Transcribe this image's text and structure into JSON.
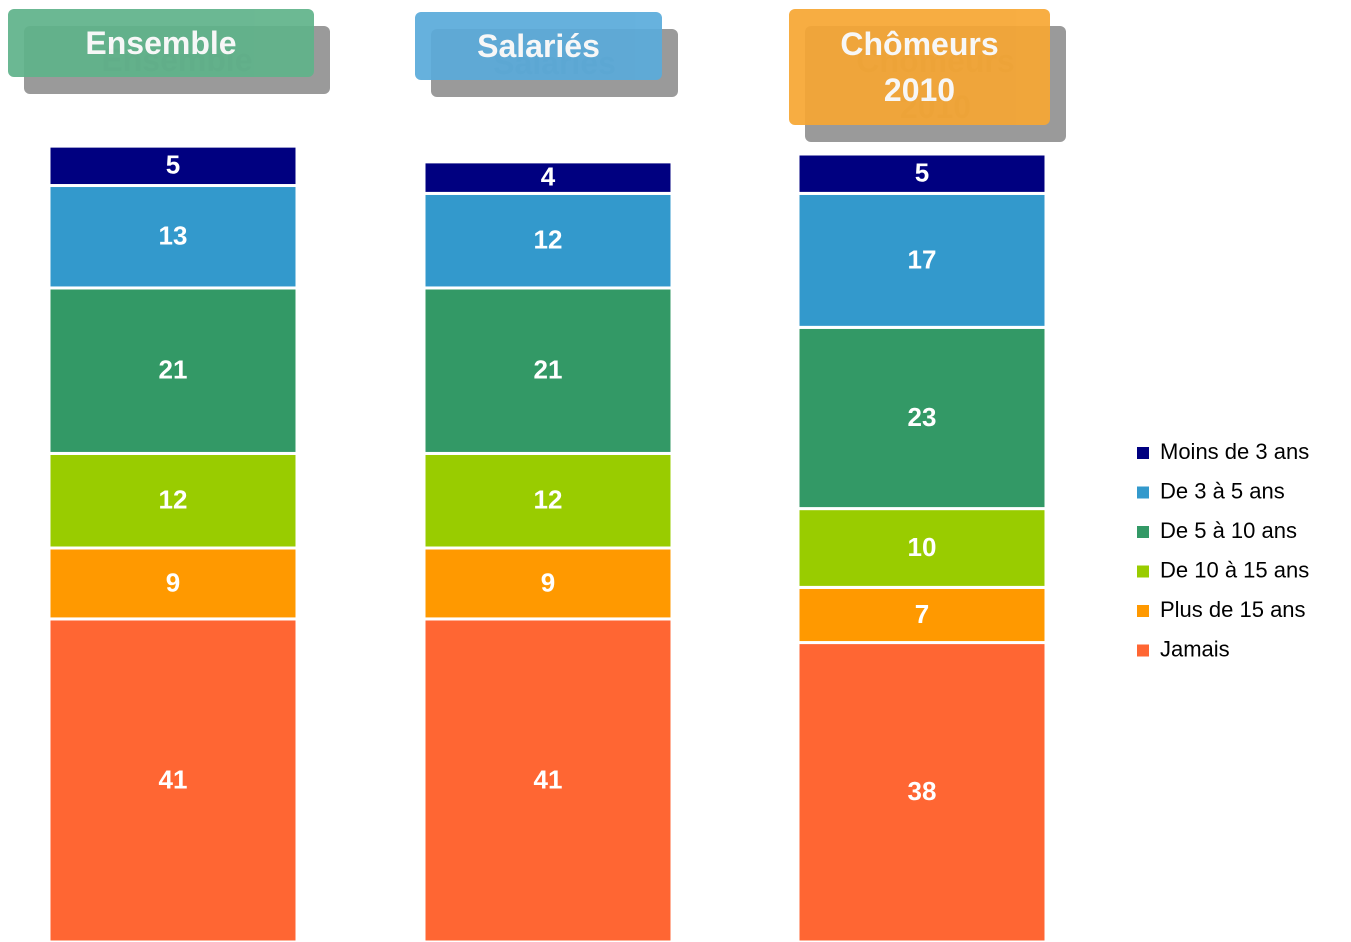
{
  "chart_data": {
    "type": "bar",
    "stacked": true,
    "categories": [
      "Ensemble",
      "Salariés",
      "Chômeurs 2010"
    ],
    "category_colors": [
      "#5fb38a",
      "#5aabdb",
      "#f7a733"
    ],
    "series": [
      {
        "name": "Moins de 3 ans",
        "color": "#000080",
        "values": [
          5,
          4,
          5
        ]
      },
      {
        "name": "De 3 à 5 ans",
        "color": "#3399cc",
        "values": [
          13,
          12,
          17
        ]
      },
      {
        "name": "De 5 à 10 ans",
        "color": "#339966",
        "values": [
          21,
          21,
          23
        ]
      },
      {
        "name": "De 10 à 15 ans",
        "color": "#99cc00",
        "values": [
          12,
          12,
          10
        ]
      },
      {
        "name": "Plus de 15 ans",
        "color": "#ff9900",
        "values": [
          9,
          9,
          7
        ]
      },
      {
        "name": "Jamais",
        "color": "#ff6633",
        "values": [
          41,
          41,
          38
        ]
      }
    ]
  }
}
